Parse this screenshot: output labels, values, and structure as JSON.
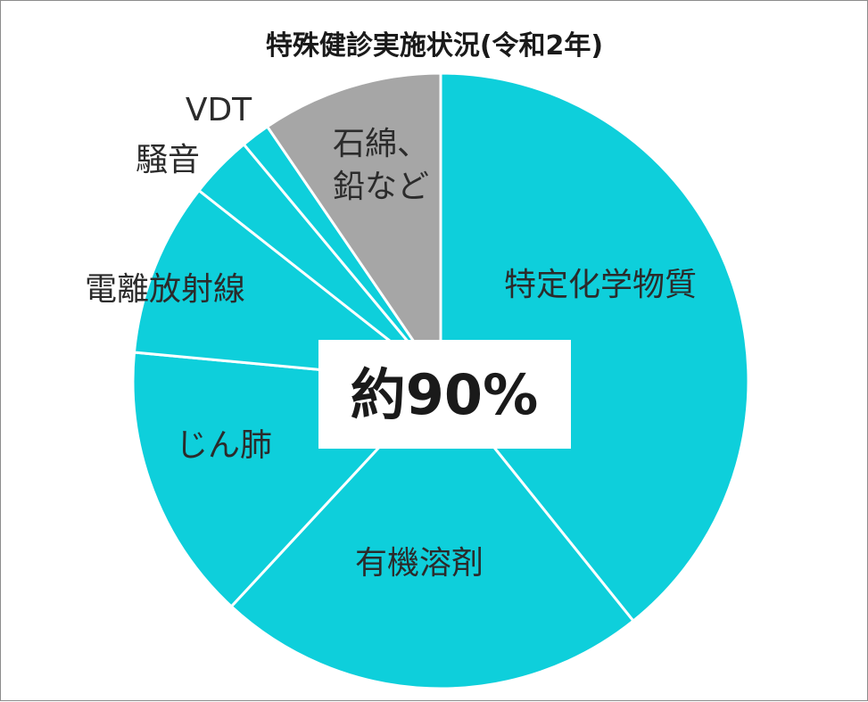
{
  "chart_data": {
    "type": "pie",
    "title": "特殊健診実施状況(令和2年)",
    "start_angle_deg": 0,
    "direction": "clockwise",
    "slices": [
      {
        "label": "特定化学物質",
        "value": 41.2,
        "color": "#0ecfdb"
      },
      {
        "label": "有機溶剤",
        "value": 23.8,
        "color": "#0ecfdb"
      },
      {
        "label": "じん肺",
        "value": 15.3,
        "color": "#0ecfdb"
      },
      {
        "label": "電離放射線",
        "value": 9.6,
        "color": "#0ecfdb"
      },
      {
        "label": "騒音",
        "value": 3.5,
        "color": "#0ecfdb"
      },
      {
        "label": "VDT",
        "value": 1.6,
        "color": "#0ecfdb"
      },
      {
        "label": "石綿、\n鉛など",
        "value": 10.0,
        "color": "#a6a6a6"
      }
    ],
    "callout": "約90%",
    "slice_border_color": "#ffffff"
  }
}
